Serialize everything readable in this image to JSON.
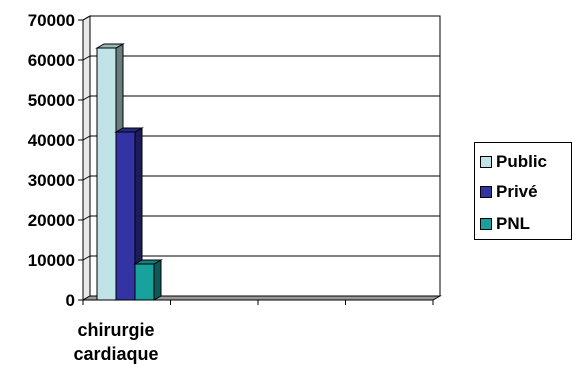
{
  "chart_data": {
    "type": "bar",
    "categories": [
      "chirurgie cardiaque"
    ],
    "category_lines": [
      "chirurgie",
      "cardiaque"
    ],
    "series": [
      {
        "name": "Public",
        "values": [
          63000
        ],
        "color": "#bfe3e6"
      },
      {
        "name": "Privé",
        "values": [
          42000
        ],
        "color": "#3333a3"
      },
      {
        "name": "PNL",
        "values": [
          9000
        ],
        "color": "#19a19e"
      }
    ],
    "ylim": [
      0,
      70000
    ],
    "yticks": [
      "0",
      "10000",
      "20000",
      "30000",
      "40000",
      "50000",
      "60000",
      "70000"
    ],
    "grid": true,
    "legend_position": "right",
    "three_d": true
  }
}
